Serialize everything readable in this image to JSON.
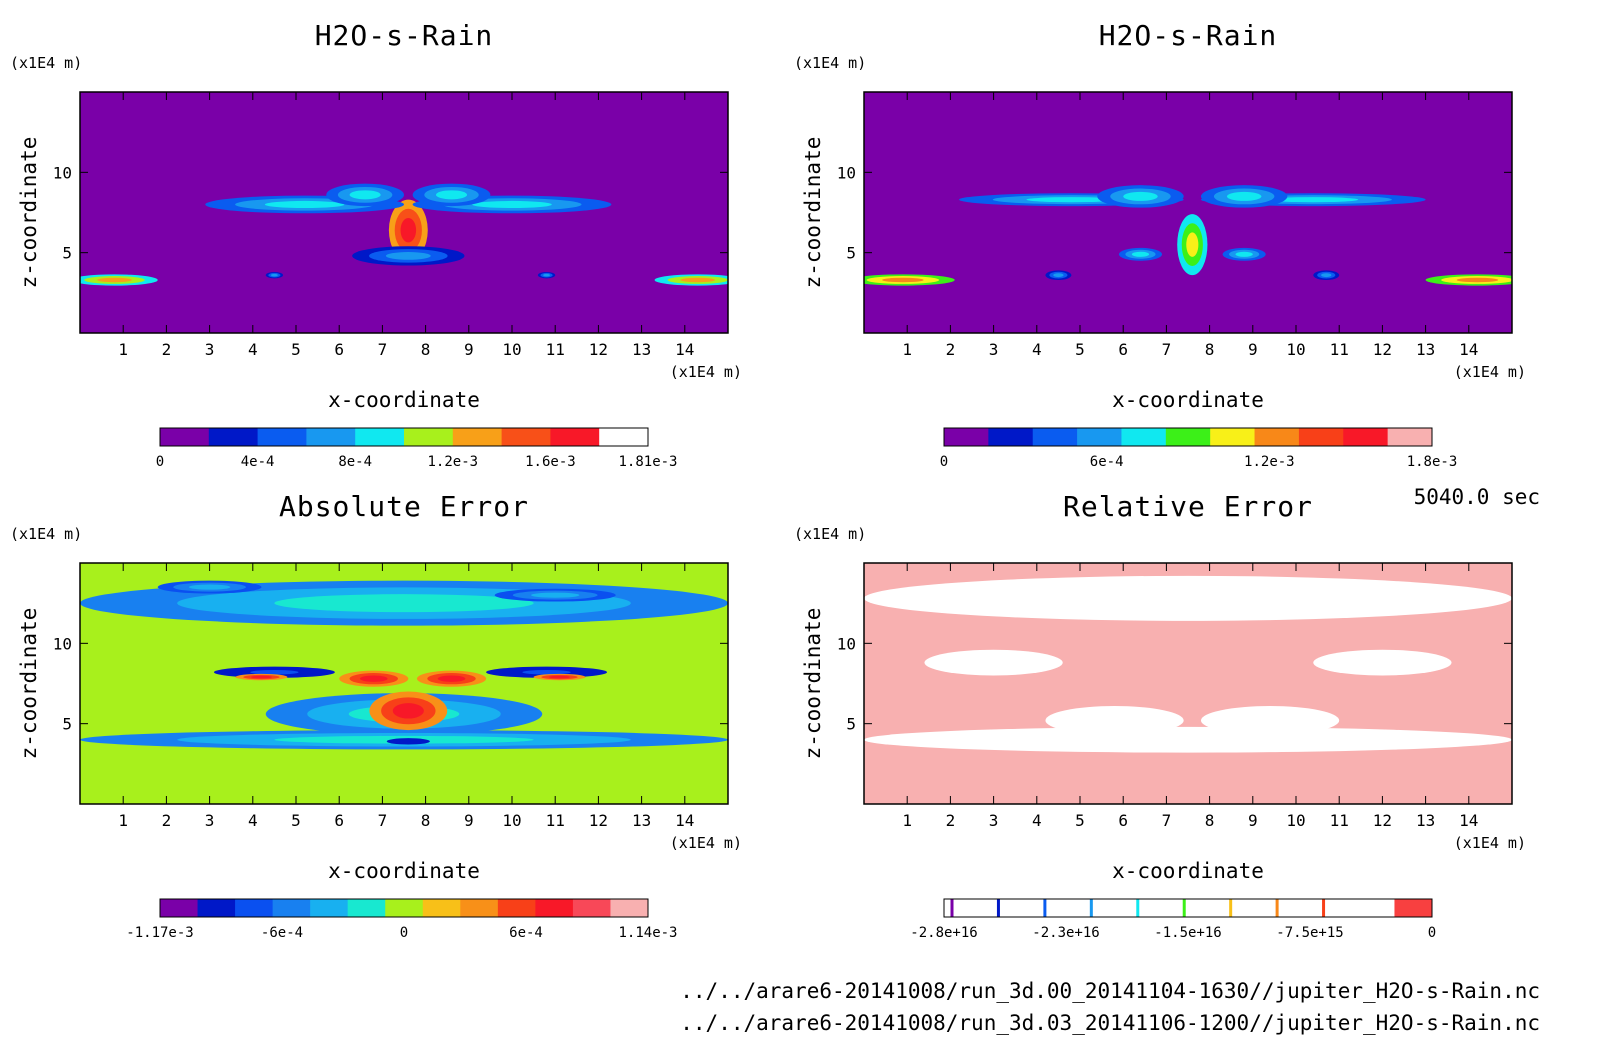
{
  "chart_data": [
    {
      "type": "heatmap",
      "title": "H2O-s-Rain",
      "xlabel": "x-coordinate",
      "ylabel": "z-coordinate",
      "x_unit": "(x1E4 m)",
      "y_unit": "(x1E4 m)",
      "xlim": [
        0,
        15
      ],
      "ylim": [
        0,
        15
      ],
      "x_ticks": [
        "1",
        "2",
        "3",
        "4",
        "5",
        "6",
        "7",
        "8",
        "9",
        "10",
        "11",
        "12",
        "13",
        "14"
      ],
      "y_ticks": [
        "5",
        "10"
      ],
      "background_color": "#7a00a8",
      "colorbar": {
        "colors": [
          "#7a00a8",
          "#0018c8",
          "#0a5cf0",
          "#1898f0",
          "#10e8f0",
          "#a8f01c",
          "#f8a018",
          "#f85018",
          "#f81828",
          "#ffffff"
        ],
        "tick_labels": [
          "0",
          "4e-4",
          "8e-4",
          "1.2e-3",
          "1.6e-3",
          "1.81e-3"
        ]
      },
      "blobs": [
        {
          "x": 7.6,
          "y": 6.4,
          "rx": 0.45,
          "ry": 1.9,
          "v": 0.85
        },
        {
          "x": 5.2,
          "y": 8.0,
          "rx": 2.3,
          "ry": 0.55,
          "v": 0.4
        },
        {
          "x": 10.0,
          "y": 8.0,
          "rx": 2.3,
          "ry": 0.55,
          "v": 0.4
        },
        {
          "x": 6.6,
          "y": 8.6,
          "rx": 0.9,
          "ry": 0.7,
          "v": 0.45
        },
        {
          "x": 8.6,
          "y": 8.6,
          "rx": 0.9,
          "ry": 0.7,
          "v": 0.45
        },
        {
          "x": 7.6,
          "y": 4.8,
          "rx": 1.3,
          "ry": 0.6,
          "v": 0.35
        },
        {
          "x": 0.8,
          "y": 3.3,
          "rx": 1.0,
          "ry": 0.35,
          "v": 0.65
        },
        {
          "x": 14.3,
          "y": 3.3,
          "rx": 1.0,
          "ry": 0.35,
          "v": 0.65
        },
        {
          "x": 4.5,
          "y": 3.6,
          "rx": 0.2,
          "ry": 0.2,
          "v": 0.3
        },
        {
          "x": 10.8,
          "y": 3.6,
          "rx": 0.2,
          "ry": 0.2,
          "v": 0.3
        }
      ]
    },
    {
      "type": "heatmap",
      "title": "H2O-s-Rain",
      "xlabel": "x-coordinate",
      "ylabel": "z-coordinate",
      "x_unit": "(x1E4 m)",
      "y_unit": "(x1E4 m)",
      "xlim": [
        0,
        15
      ],
      "ylim": [
        0,
        15
      ],
      "x_ticks": [
        "1",
        "2",
        "3",
        "4",
        "5",
        "6",
        "7",
        "8",
        "9",
        "10",
        "11",
        "12",
        "13",
        "14"
      ],
      "y_ticks": [
        "5",
        "10"
      ],
      "background_color": "#7a00a8",
      "colorbar": {
        "colors": [
          "#7a00a8",
          "#0018c8",
          "#0a5cf0",
          "#1898f0",
          "#10e8f0",
          "#3cf018",
          "#f8f018",
          "#f88818",
          "#f84018",
          "#f81828",
          "#f8b0b0"
        ],
        "tick_labels": [
          "0",
          "6e-4",
          "1.2e-3",
          "1.8e-3"
        ]
      },
      "blobs": [
        {
          "x": 7.6,
          "y": 5.5,
          "rx": 0.35,
          "ry": 1.9,
          "v": 0.6
        },
        {
          "x": 4.8,
          "y": 8.3,
          "rx": 2.6,
          "ry": 0.4,
          "v": 0.35
        },
        {
          "x": 10.4,
          "y": 8.3,
          "rx": 2.6,
          "ry": 0.4,
          "v": 0.35
        },
        {
          "x": 6.4,
          "y": 8.5,
          "rx": 1.0,
          "ry": 0.7,
          "v": 0.4
        },
        {
          "x": 8.8,
          "y": 8.5,
          "rx": 1.0,
          "ry": 0.7,
          "v": 0.4
        },
        {
          "x": 6.4,
          "y": 4.9,
          "rx": 0.5,
          "ry": 0.4,
          "v": 0.35
        },
        {
          "x": 8.8,
          "y": 4.9,
          "rx": 0.5,
          "ry": 0.4,
          "v": 0.35
        },
        {
          "x": 0.9,
          "y": 3.3,
          "rx": 1.2,
          "ry": 0.35,
          "v": 0.65
        },
        {
          "x": 14.2,
          "y": 3.3,
          "rx": 1.2,
          "ry": 0.35,
          "v": 0.65
        },
        {
          "x": 4.5,
          "y": 3.6,
          "rx": 0.3,
          "ry": 0.3,
          "v": 0.3
        },
        {
          "x": 10.7,
          "y": 3.6,
          "rx": 0.3,
          "ry": 0.3,
          "v": 0.3
        }
      ]
    },
    {
      "type": "heatmap",
      "title": "Absolute Error",
      "xlabel": "x-coordinate",
      "ylabel": "z-coordinate",
      "x_unit": "(x1E4 m)",
      "y_unit": "(x1E4 m)",
      "xlim": [
        0,
        15
      ],
      "ylim": [
        0,
        15
      ],
      "x_ticks": [
        "1",
        "2",
        "3",
        "4",
        "5",
        "6",
        "7",
        "8",
        "9",
        "10",
        "11",
        "12",
        "13",
        "14"
      ],
      "y_ticks": [
        "5",
        "10"
      ],
      "background_color": "#a8f01c",
      "colorbar": {
        "colors": [
          "#7a00a8",
          "#0018c8",
          "#0a50f0",
          "#1880f0",
          "#18b0f0",
          "#18e8d0",
          "#a8f01c",
          "#f8c018",
          "#f89018",
          "#f84018",
          "#f81828",
          "#f84858",
          "#f8b0b0"
        ],
        "tick_labels": [
          "-1.17e-3",
          "-6e-4",
          "0",
          "6e-4",
          "1.14e-3"
        ]
      },
      "blobs": [
        {
          "x": 7.5,
          "y": 12.5,
          "rx": 7.5,
          "ry": 1.4,
          "v": 0.42
        },
        {
          "x": 3.0,
          "y": 13.5,
          "rx": 1.2,
          "ry": 0.4,
          "v": 0.3
        },
        {
          "x": 11.0,
          "y": 13.0,
          "rx": 1.4,
          "ry": 0.4,
          "v": 0.3
        },
        {
          "x": 7.5,
          "y": 5.6,
          "rx": 3.2,
          "ry": 1.3,
          "v": 0.42
        },
        {
          "x": 7.5,
          "y": 4.0,
          "rx": 7.5,
          "ry": 0.6,
          "v": 0.42
        },
        {
          "x": 7.6,
          "y": 5.8,
          "rx": 0.9,
          "ry": 1.2,
          "v": 0.85
        },
        {
          "x": 6.8,
          "y": 7.8,
          "rx": 0.8,
          "ry": 0.5,
          "v": 0.85
        },
        {
          "x": 8.6,
          "y": 7.8,
          "rx": 0.8,
          "ry": 0.5,
          "v": 0.85
        },
        {
          "x": 4.5,
          "y": 8.2,
          "rx": 1.4,
          "ry": 0.35,
          "v": 0.15
        },
        {
          "x": 10.8,
          "y": 8.2,
          "rx": 1.4,
          "ry": 0.35,
          "v": 0.15
        },
        {
          "x": 4.2,
          "y": 7.9,
          "rx": 0.6,
          "ry": 0.2,
          "v": 0.85
        },
        {
          "x": 11.1,
          "y": 7.9,
          "rx": 0.6,
          "ry": 0.2,
          "v": 0.85
        },
        {
          "x": 7.6,
          "y": 3.9,
          "rx": 0.5,
          "ry": 0.2,
          "v": 0.1
        }
      ]
    },
    {
      "type": "heatmap",
      "title": "Relative Error",
      "xlabel": "x-coordinate",
      "ylabel": "z-coordinate",
      "x_unit": "(x1E4 m)",
      "y_unit": "(x1E4 m)",
      "xlim": [
        0,
        15
      ],
      "ylim": [
        0,
        15
      ],
      "x_ticks": [
        "1",
        "2",
        "3",
        "4",
        "5",
        "6",
        "7",
        "8",
        "9",
        "10",
        "11",
        "12",
        "13",
        "14"
      ],
      "y_ticks": [
        "5",
        "10"
      ],
      "background_color": "#f8b0b0",
      "colorbar": {
        "colors": [
          "#ffffff",
          "#ffffff",
          "#ffffff",
          "#ffffff",
          "#ffffff",
          "#ffffff",
          "#ffffff",
          "#ffffff",
          "#ffffff",
          "#ffffff",
          "#ffffff",
          "#ffffff",
          "#f84040"
        ],
        "tick_labels": [
          "-2.8e+16",
          "-2.3e+16",
          "-1.5e+16",
          "-7.5e+15",
          "0"
        ]
      },
      "blobs": [
        {
          "x": 7.5,
          "y": 12.8,
          "rx": 7.5,
          "ry": 1.4,
          "v": 0.95
        },
        {
          "x": 7.5,
          "y": 4.0,
          "rx": 7.5,
          "ry": 0.8,
          "v": 0.95
        },
        {
          "x": 5.8,
          "y": 5.2,
          "rx": 1.6,
          "ry": 0.9,
          "v": 0.95
        },
        {
          "x": 9.4,
          "y": 5.2,
          "rx": 1.6,
          "ry": 0.9,
          "v": 0.95
        },
        {
          "x": 3.0,
          "y": 8.8,
          "rx": 1.6,
          "ry": 0.8,
          "v": 0.95
        },
        {
          "x": 12.0,
          "y": 8.8,
          "rx": 1.6,
          "ry": 0.8,
          "v": 0.95
        },
        {
          "x": 5.0,
          "y": 4.7,
          "rx": 0.3,
          "ry": 0.25,
          "v": 0.5
        },
        {
          "x": 10.2,
          "y": 4.7,
          "rx": 0.3,
          "ry": 0.25,
          "v": 0.5
        }
      ]
    }
  ],
  "time_label": "5040.0 sec",
  "footer": {
    "line1": "../../arare6-20141008/run_3d.00_20141104-1630//jupiter_H2O-s-Rain.nc",
    "line2": "../../arare6-20141008/run_3d.03_20141106-1200//jupiter_H2O-s-Rain.nc"
  }
}
